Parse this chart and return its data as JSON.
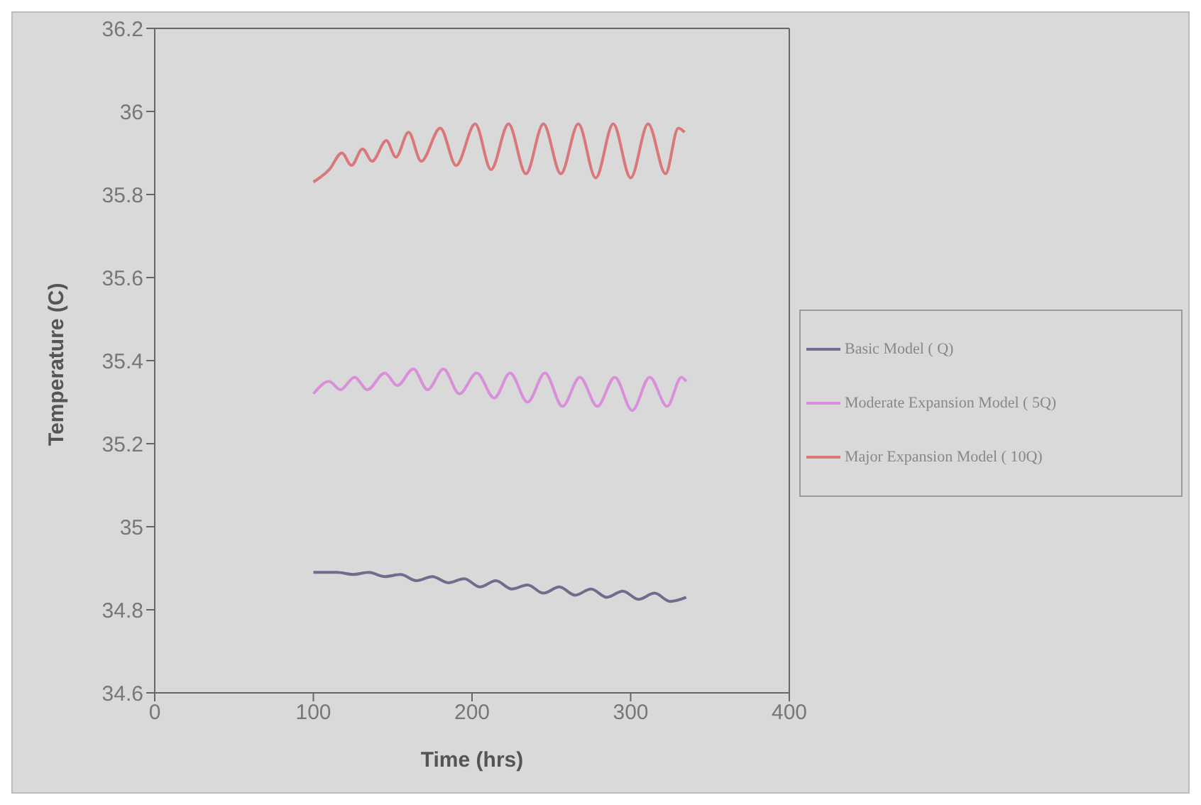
{
  "chart_data": {
    "type": "line",
    "xlabel": "Time (hrs)",
    "ylabel": "Temperature (C)",
    "xlim": [
      0,
      400
    ],
    "xticks": [
      0,
      100,
      200,
      300,
      400
    ],
    "ylim": [
      34.6,
      36.2
    ],
    "yticks": [
      34.6,
      34.8,
      35,
      35.2,
      35.4,
      35.6,
      35.8,
      36,
      36.2
    ],
    "grid": false,
    "legend": "right",
    "marker": "none",
    "line_style": "solid",
    "series": [
      {
        "name": "Basic Model ( Q)",
        "color": "#6e6e8c",
        "x": [
          100,
          115,
          125,
          135,
          145,
          155,
          165,
          175,
          185,
          195,
          205,
          215,
          225,
          235,
          245,
          255,
          265,
          275,
          285,
          295,
          305,
          315,
          325,
          335
        ],
        "values": [
          34.89,
          34.89,
          34.885,
          34.89,
          34.88,
          34.885,
          34.87,
          34.88,
          34.865,
          34.875,
          34.855,
          34.87,
          34.85,
          34.86,
          34.84,
          34.855,
          34.835,
          34.85,
          34.83,
          34.845,
          34.825,
          34.84,
          34.82,
          34.83
        ]
      },
      {
        "name": "Moderate Expansion Model ( 5Q)",
        "color": "#d98fd9",
        "x": [
          100,
          110,
          117,
          126,
          134,
          145,
          153,
          163,
          172,
          182,
          192,
          203,
          214,
          224,
          235,
          246,
          257,
          268,
          279,
          290,
          301,
          312,
          323,
          332,
          335
        ],
        "values": [
          35.32,
          35.35,
          35.33,
          35.36,
          35.33,
          35.37,
          35.34,
          35.38,
          35.33,
          35.38,
          35.32,
          35.37,
          35.31,
          35.37,
          35.3,
          35.37,
          35.29,
          35.36,
          35.29,
          35.36,
          35.28,
          35.36,
          35.29,
          35.36,
          35.35
        ]
      },
      {
        "name": "Major Expansion Model ( 10Q)",
        "color": "#d9777a",
        "x": [
          100,
          110,
          118,
          124,
          131,
          137,
          146,
          152,
          160,
          168,
          180,
          190,
          202,
          212,
          223,
          234,
          245,
          256,
          267,
          278,
          289,
          300,
          311,
          322,
          330,
          334
        ],
        "values": [
          35.83,
          35.86,
          35.9,
          35.87,
          35.91,
          35.88,
          35.93,
          35.89,
          35.95,
          35.88,
          35.96,
          35.87,
          35.97,
          35.86,
          35.97,
          35.85,
          35.97,
          35.85,
          35.97,
          35.84,
          35.97,
          35.84,
          35.97,
          35.85,
          35.96,
          35.95
        ]
      }
    ]
  }
}
